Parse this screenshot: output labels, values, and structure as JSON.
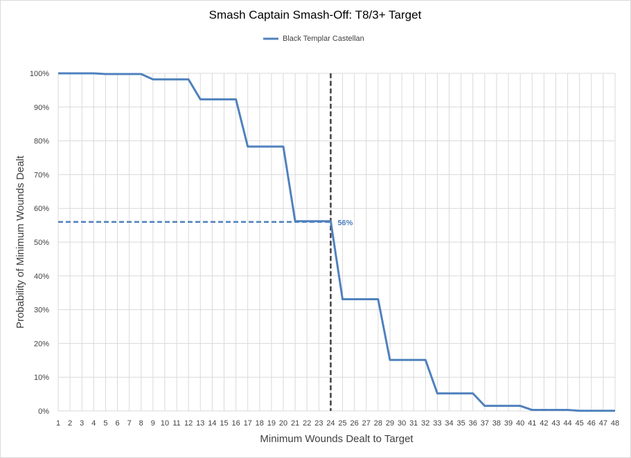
{
  "chart_data": {
    "type": "line",
    "title": "Smash Captain Smash-Off: T8/3+ Target",
    "xlabel": "Minimum Wounds Dealt  to Target",
    "ylabel": "Probability of Minimum Wounds Dealt",
    "xlim": [
      1,
      48
    ],
    "ylim": [
      0,
      100
    ],
    "y_ticks": [
      0,
      10,
      20,
      30,
      40,
      50,
      60,
      70,
      80,
      90,
      100
    ],
    "y_tick_labels": [
      "0%",
      "10%",
      "20%",
      "30%",
      "40%",
      "50%",
      "60%",
      "70%",
      "80%",
      "90%",
      "100%"
    ],
    "x_tick_labels": [
      "1",
      "2",
      "3",
      "4",
      "5",
      "6",
      "7",
      "8",
      "9",
      "10",
      "11",
      "12",
      "13",
      "14",
      "15",
      "16",
      "17",
      "18",
      "19",
      "20",
      "21",
      "22",
      "23",
      "24",
      "25",
      "26",
      "27",
      "28",
      "29",
      "30",
      "31",
      "32",
      "33",
      "34",
      "35",
      "36",
      "37",
      "38",
      "39",
      "40",
      "41",
      "42",
      "43",
      "44",
      "45",
      "46",
      "47",
      "48"
    ],
    "grid": true,
    "legend_position": "top",
    "series": [
      {
        "name": "Black Templar Castellan",
        "color": "#4f81bd",
        "x": [
          1,
          2,
          3,
          4,
          5,
          6,
          7,
          8,
          9,
          10,
          11,
          12,
          13,
          14,
          15,
          16,
          17,
          18,
          19,
          20,
          21,
          22,
          23,
          24,
          25,
          26,
          27,
          28,
          29,
          30,
          31,
          32,
          33,
          34,
          35,
          36,
          37,
          38,
          39,
          40,
          41,
          42,
          43,
          44,
          45,
          46,
          47,
          48
        ],
        "values": [
          100,
          100,
          100,
          100,
          99.8,
          99.8,
          99.8,
          99.8,
          98.2,
          98.2,
          98.2,
          98.2,
          92.3,
          92.3,
          92.3,
          92.3,
          78.3,
          78.3,
          78.3,
          78.3,
          56.2,
          56.2,
          56.2,
          56.2,
          33.1,
          33.1,
          33.1,
          33.1,
          15.1,
          15.1,
          15.1,
          15.1,
          5.2,
          5.2,
          5.2,
          5.2,
          1.5,
          1.5,
          1.5,
          1.5,
          0.3,
          0.3,
          0.3,
          0.3,
          0.05,
          0.05,
          0.05,
          0.05
        ]
      }
    ],
    "annotation": {
      "x": 24,
      "y": 56,
      "label": "56%",
      "color": "#4f81bd",
      "vline_color": "#404040",
      "hline_color": "#4f81bd"
    }
  }
}
